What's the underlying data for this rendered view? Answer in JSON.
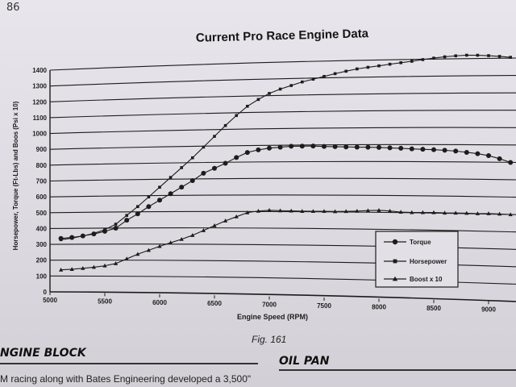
{
  "page": {
    "number": "86",
    "figure_caption": "Fig. 161",
    "section_left": "NGINE BLOCK",
    "section_right": "OIL PAN",
    "body_text": "M racing along with Bates Engineering developed a 3,500\""
  },
  "chart_data": {
    "type": "line",
    "title": "Current Pro Race Engine Data",
    "xlabel": "Engine Speed (RPM)",
    "ylabel": "Horsepower, Torque (Ft-Lbs) and Boos (Psi x 10)",
    "xlim": [
      5000,
      9250
    ],
    "ylim": [
      0,
      1400
    ],
    "xticks": [
      5000,
      5500,
      6000,
      6500,
      7000,
      7500,
      8000,
      8500,
      9000
    ],
    "yticks": [
      0,
      100,
      200,
      300,
      400,
      500,
      600,
      700,
      800,
      900,
      1000,
      1100,
      1200,
      1300,
      1400
    ],
    "grid": true,
    "legend_position": "right",
    "series": [
      {
        "name": "Torque",
        "marker": "circle",
        "x": [
          5100,
          5200,
          5300,
          5400,
          5500,
          5600,
          5700,
          5800,
          5900,
          6000,
          6100,
          6200,
          6300,
          6400,
          6500,
          6600,
          6700,
          6800,
          6900,
          7000,
          7100,
          7200,
          7300,
          7400,
          7500,
          7600,
          7700,
          7800,
          7900,
          8000,
          8100,
          8200,
          8300,
          8400,
          8500,
          8600,
          8700,
          8800,
          8900,
          9000,
          9100,
          9200
        ],
        "values": [
          338,
          345,
          355,
          368,
          385,
          405,
          455,
          495,
          540,
          580,
          620,
          660,
          700,
          745,
          775,
          805,
          840,
          870,
          885,
          895,
          900,
          905,
          905,
          905,
          902,
          900,
          898,
          896,
          895,
          893,
          890,
          887,
          883,
          880,
          877,
          873,
          868,
          860,
          852,
          840,
          822,
          800
        ]
      },
      {
        "name": "Horsepower",
        "marker": "square",
        "x": [
          5100,
          5200,
          5300,
          5400,
          5500,
          5600,
          5700,
          5800,
          5900,
          6000,
          6100,
          6200,
          6300,
          6400,
          6500,
          6600,
          6700,
          6800,
          6900,
          7000,
          7100,
          7200,
          7300,
          7400,
          7500,
          7600,
          7700,
          7800,
          7900,
          8000,
          8100,
          8200,
          8300,
          8400,
          8500,
          8600,
          8700,
          8800,
          8900,
          9000,
          9100,
          9200
        ],
        "values": [
          330,
          340,
          355,
          372,
          395,
          430,
          485,
          540,
          600,
          660,
          720,
          780,
          840,
          905,
          970,
          1035,
          1095,
          1150,
          1190,
          1225,
          1250,
          1270,
          1290,
          1305,
          1320,
          1335,
          1348,
          1360,
          1368,
          1375,
          1383,
          1390,
          1397,
          1405,
          1412,
          1418,
          1422,
          1424,
          1422,
          1418,
          1412,
          1405
        ]
      },
      {
        "name": "Boost x 10",
        "marker": "triangle",
        "x": [
          5100,
          5200,
          5300,
          5400,
          5500,
          5600,
          5700,
          5800,
          5900,
          6000,
          6100,
          6200,
          6300,
          6400,
          6500,
          6600,
          6700,
          6800,
          6900,
          7000,
          7100,
          7200,
          7300,
          7400,
          7500,
          7600,
          7700,
          7800,
          7900,
          8000,
          8100,
          8200,
          8300,
          8400,
          8500,
          8600,
          8700,
          8800,
          8900,
          9000,
          9100,
          9200
        ],
        "values": [
          140,
          145,
          152,
          160,
          170,
          185,
          215,
          245,
          270,
          295,
          318,
          340,
          365,
          395,
          425,
          455,
          480,
          505,
          515,
          520,
          518,
          517,
          515,
          515,
          515,
          514,
          515,
          517,
          520,
          522,
          518,
          512,
          510,
          510,
          510,
          508,
          508,
          507,
          505,
          505,
          503,
          500
        ]
      }
    ]
  },
  "colors": {
    "ink": "#1c1c1c",
    "grid": "#2a2a2a",
    "legend_bg": "#e2e0e6"
  }
}
